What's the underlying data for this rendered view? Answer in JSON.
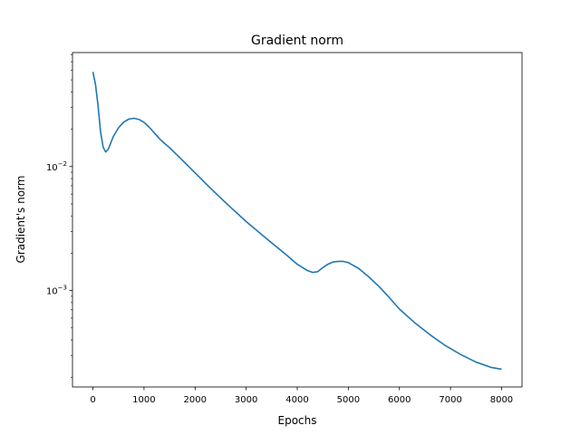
{
  "chart_data": {
    "type": "line",
    "title": "Gradient norm",
    "xlabel": "Epochs",
    "ylabel": "Gradient's norm",
    "xlim": [
      -400,
      8400
    ],
    "ylim": [
      0.000167,
      0.083
    ],
    "yscale": "log",
    "grid": false,
    "legend": "none",
    "x_ticks": [
      0,
      1000,
      2000,
      3000,
      4000,
      5000,
      6000,
      7000,
      8000
    ],
    "x_tick_labels": [
      "0",
      "1000",
      "2000",
      "3000",
      "4000",
      "5000",
      "6000",
      "7000",
      "8000"
    ],
    "y_major_ticks": [
      0.001,
      0.01
    ],
    "y_tick_labels": [
      {
        "base": "10",
        "exp": "−3"
      },
      {
        "base": "10",
        "exp": "−2"
      }
    ],
    "series": [
      {
        "color": "#1f77b4",
        "x": [
          0,
          50,
          100,
          150,
          200,
          250,
          300,
          350,
          400,
          500,
          600,
          700,
          800,
          900,
          1000,
          1100,
          1200,
          1300,
          1400,
          1500,
          1700,
          2000,
          2300,
          2600,
          3000,
          3400,
          3800,
          4000,
          4200,
          4300,
          4400,
          4500,
          4600,
          4700,
          4800,
          4900,
          5000,
          5200,
          5400,
          5600,
          5800,
          6000,
          6300,
          6600,
          6900,
          7200,
          7500,
          7800,
          8000
        ],
        "y": [
          0.058,
          0.046,
          0.031,
          0.019,
          0.0143,
          0.0131,
          0.0138,
          0.0155,
          0.0175,
          0.0205,
          0.0228,
          0.0241,
          0.0245,
          0.024,
          0.0227,
          0.0208,
          0.0187,
          0.0168,
          0.0154,
          0.0142,
          0.0118,
          0.0089,
          0.0067,
          0.0051,
          0.0036,
          0.00262,
          0.00192,
          0.00163,
          0.00145,
          0.0014,
          0.00142,
          0.00153,
          0.00163,
          0.0017,
          0.00172,
          0.00172,
          0.00168,
          0.00151,
          0.00129,
          0.00108,
          0.00088,
          0.00071,
          0.00055,
          0.00044,
          0.00036,
          0.000305,
          0.000265,
          0.00024,
          0.000232
        ]
      }
    ]
  },
  "colors": {
    "line": "#1f77b4",
    "axes": "#000000",
    "background": "#ffffff"
  }
}
